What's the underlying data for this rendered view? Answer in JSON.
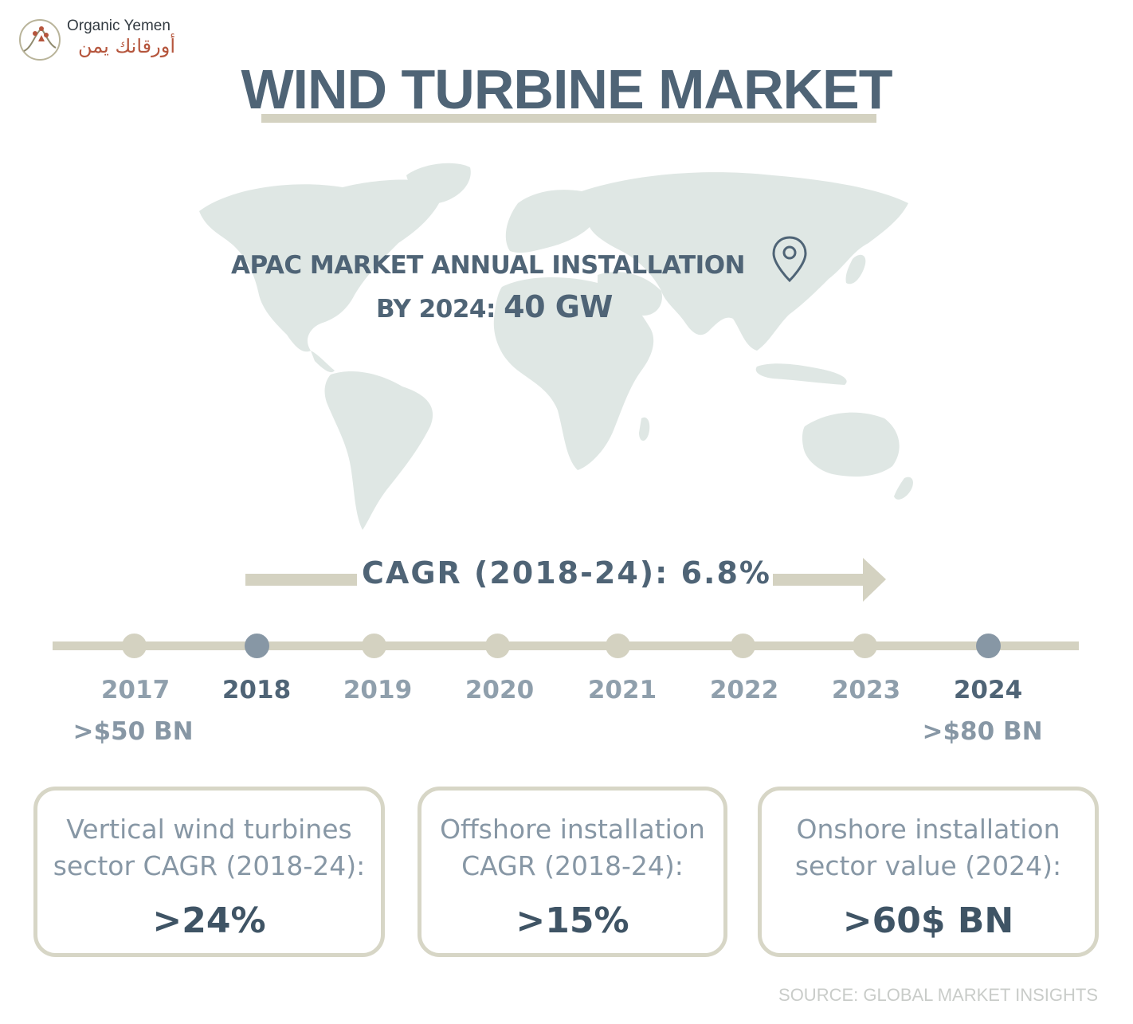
{
  "brand": {
    "name_en": "Organic Yemen",
    "name_ar": "أورقانك يمن"
  },
  "title": "WIND TURBINE MARKET",
  "apac": {
    "line1": "APAC MARKET ANNUAL INSTALLATION",
    "line2_prefix": "BY 2024: ",
    "line2_value": "40 GW"
  },
  "cagr": {
    "text": "CAGR (2018-24): 6.8%"
  },
  "timeline": {
    "years": [
      "2017",
      "2018",
      "2019",
      "2020",
      "2021",
      "2022",
      "2023",
      "2024"
    ],
    "highlighted_years": [
      "2018",
      "2024"
    ],
    "start_value": ">$50 BN",
    "end_value": ">$80 BN"
  },
  "cards": [
    {
      "label_line1": "Vertical wind turbines",
      "label_line2": "sector CAGR (2018-24):",
      "value": ">24%"
    },
    {
      "label_line1": "Offshore installation",
      "label_line2": "CAGR (2018-24):",
      "value": ">15%"
    },
    {
      "label_line1": "Onshore installation",
      "label_line2": "sector value (2024):",
      "value": ">60$ BN"
    }
  ],
  "source": "SOURCE: GLOBAL MARKET INSIGHTS",
  "colors": {
    "primary_text": "#4f6476",
    "muted_text": "#8797a5",
    "accent_bar": "#d4d2c1",
    "map_fill": "#dfe7e4",
    "logo_arabic": "#b5553c"
  },
  "icons": [
    "logo-mark-icon",
    "location-pin-icon"
  ]
}
